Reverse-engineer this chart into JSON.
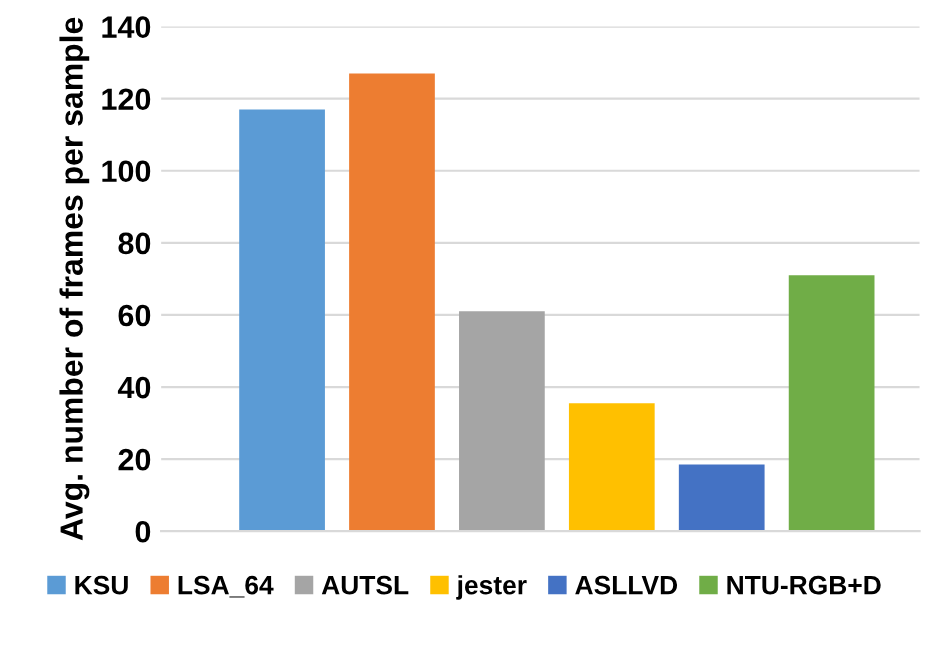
{
  "chart_data": {
    "type": "bar",
    "ylabel": "Avg. number of frames per sample",
    "categories": [
      null,
      null,
      null,
      null,
      null,
      null
    ],
    "series": [
      {
        "name": "KSU",
        "color": "#5b9bd5",
        "values": [
          117,
          null,
          null,
          null,
          null,
          null
        ]
      },
      {
        "name": "LSA_64",
        "color": "#ed7d31",
        "values": [
          null,
          127,
          null,
          null,
          null,
          null
        ]
      },
      {
        "name": "AUTSL",
        "color": "#a5a5a5",
        "values": [
          null,
          null,
          61,
          null,
          null,
          null
        ]
      },
      {
        "name": "jester",
        "color": "#ffc000",
        "values": [
          null,
          null,
          null,
          35.5,
          null,
          null
        ]
      },
      {
        "name": "ASLLVD",
        "color": "#4472c4",
        "values": [
          null,
          null,
          null,
          null,
          18.5,
          null
        ]
      },
      {
        "name": "NTU-RGB+D",
        "color": "#70ad47",
        "values": [
          null,
          null,
          null,
          null,
          null,
          71
        ]
      }
    ],
    "ylim": [
      0,
      140
    ],
    "yticks": [
      0,
      20,
      40,
      60,
      80,
      100,
      120,
      140
    ],
    "grid": "y",
    "legend": "bottom",
    "tick_labels": "y"
  }
}
